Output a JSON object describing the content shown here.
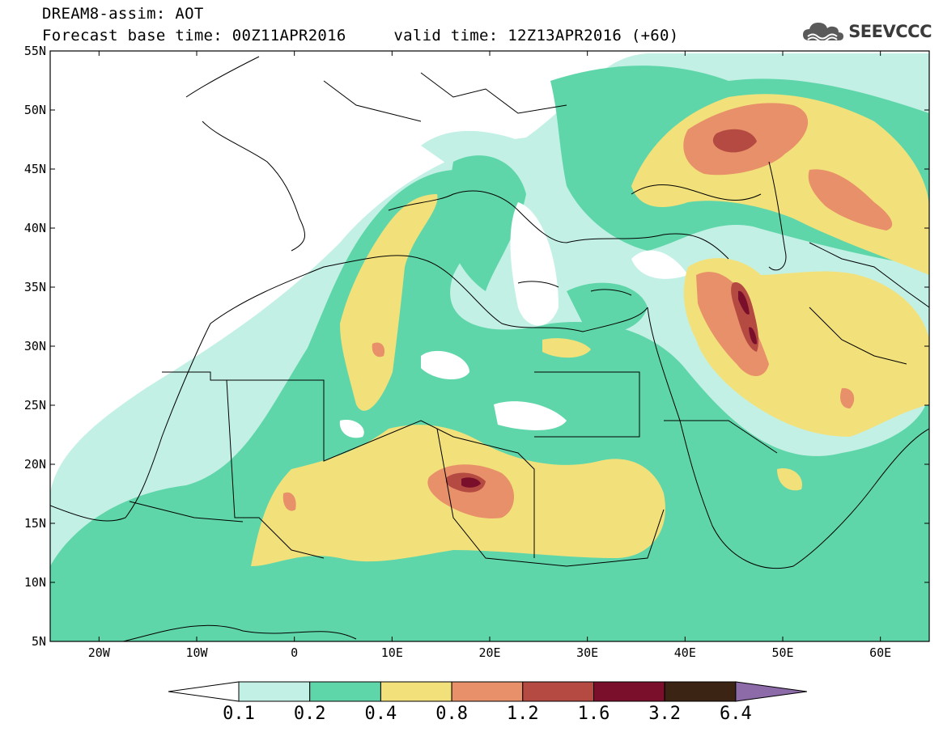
{
  "header": {
    "line1": "DREAM8-assim: AOT",
    "line2_base": "Forecast base time: 00Z11APR2016",
    "line2_valid": "valid time: 12Z13APR2016 (+60)"
  },
  "brand": {
    "name": "SEEVCCC",
    "icon": "cloud-logo-icon"
  },
  "map": {
    "field": "AOT",
    "lon_range": [
      -25,
      65
    ],
    "lat_range": [
      5,
      55
    ],
    "lat_ticks": [
      "5N",
      "10N",
      "15N",
      "20N",
      "25N",
      "30N",
      "35N",
      "40N",
      "45N",
      "50N",
      "55N"
    ],
    "lon_ticks": [
      "20W",
      "10W",
      "0",
      "10E",
      "20E",
      "30E",
      "40E",
      "50E",
      "60E"
    ]
  },
  "colorbar": {
    "levels": [
      "0.1",
      "0.2",
      "0.4",
      "0.8",
      "1.2",
      "1.6",
      "3.2",
      "6.4"
    ],
    "colors": [
      "#ffffff",
      "#c3f0e5",
      "#5fd6aa",
      "#f2e17a",
      "#e8906a",
      "#b44a41",
      "#7a0f2b",
      "#3b2414",
      "#8c6ba8"
    ]
  }
}
